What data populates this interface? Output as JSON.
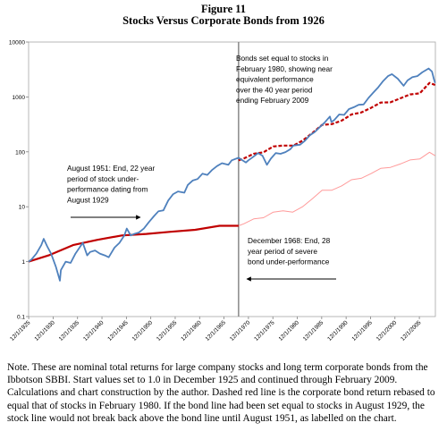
{
  "figure": {
    "number": "Figure 11",
    "title": "Stocks Versus Corporate Bonds from 1926"
  },
  "chart_data": {
    "type": "line",
    "y_scale": "log",
    "ylim": [
      0.1,
      10000
    ],
    "y_ticks": [
      "0.1",
      "1",
      "10",
      "100",
      "1000",
      "10000"
    ],
    "xlim": [
      1925.9,
      2009.2
    ],
    "x_ticks": [
      "12/1/1925",
      "12/1/1930",
      "12/1/1935",
      "12/1/1940",
      "12/1/1945",
      "12/1/1950",
      "12/1/1955",
      "12/1/1960",
      "12/1/1965",
      "12/1/1970",
      "12/1/1975",
      "12/1/1980",
      "12/1/1985",
      "12/1/1990",
      "12/1/1995",
      "12/1/2000",
      "12/1/2005"
    ],
    "vertical_marker_x": 1968.9,
    "colors": {
      "stocks": "#4f81bd",
      "bonds": "#c00000",
      "bonds_after_1968": "#ff9a9a",
      "bonds_rebased": "#c00000",
      "marker": "#7f7f7f"
    },
    "series": [
      {
        "key": "stocks",
        "style": "solid",
        "x": [
          1925.9,
          1926.5,
          1927.5,
          1928.5,
          1929.0,
          1929.7,
          1930.5,
          1931.5,
          1932.3,
          1932.5,
          1933.5,
          1934.5,
          1935.5,
          1936.5,
          1937.0,
          1937.9,
          1938.5,
          1939.5,
          1940.5,
          1941.5,
          1942.3,
          1943.5,
          1944.5,
          1945.5,
          1946.0,
          1946.8,
          1947.5,
          1948.5,
          1949.5,
          1950.5,
          1951.6,
          1952.5,
          1953.5,
          1954.5,
          1955.5,
          1956.5,
          1957.8,
          1958.5,
          1959.5,
          1960.5,
          1961.5,
          1962.5,
          1963.5,
          1964.5,
          1965.5,
          1966.8,
          1967.5,
          1968.9,
          1969.5,
          1970.4,
          1970.9,
          1971.8,
          1972.9,
          1973.8,
          1974.7,
          1975.5,
          1976.5,
          1977.5,
          1978.5,
          1979.5,
          1980.1,
          1981.5,
          1982.5,
          1983.5,
          1984.5,
          1985.5,
          1986.5,
          1987.6,
          1987.9,
          1988.5,
          1989.5,
          1990.5,
          1991.5,
          1992.5,
          1993.5,
          1994.5,
          1995.5,
          1996.5,
          1997.5,
          1998.5,
          1999.5,
          2000.3,
          2001.5,
          2002.7,
          2003.5,
          2004.5,
          2005.5,
          2006.5,
          2007.8,
          2008.5,
          2008.9,
          2009.15
        ],
        "values": [
          1.0,
          1.1,
          1.4,
          2.0,
          2.6,
          1.9,
          1.4,
          0.8,
          0.45,
          0.7,
          1.0,
          0.95,
          1.4,
          1.9,
          2.2,
          1.3,
          1.5,
          1.6,
          1.4,
          1.3,
          1.2,
          1.8,
          2.2,
          3.0,
          4.0,
          3.0,
          3.2,
          3.4,
          4.0,
          5.2,
          6.8,
          8.3,
          8.6,
          13.0,
          17.0,
          19.0,
          18.0,
          25.0,
          30.0,
          32.0,
          40.0,
          38.0,
          47.0,
          55.0,
          62.0,
          58.0,
          70.0,
          78.0,
          72.0,
          64.0,
          70.0,
          80.0,
          95.0,
          85.0,
          58.0,
          75.0,
          95.0,
          92.0,
          99.0,
          112.0,
          130.0,
          135.0,
          160.0,
          200.0,
          230.0,
          280.0,
          340.0,
          440.0,
          350.0,
          380.0,
          480.0,
          470.0,
          600.0,
          650.0,
          720.0,
          730.0,
          960.0,
          1200.0,
          1500.0,
          1950.0,
          2400.0,
          2600.0,
          2150.0,
          1600.0,
          2000.0,
          2300.0,
          2400.0,
          2800.0,
          3300.0,
          2900.0,
          2100.0,
          1800.0
        ]
      },
      {
        "key": "bonds",
        "style": "solid",
        "x": [
          1925.9,
          1930,
          1935,
          1940,
          1945,
          1950,
          1955,
          1960,
          1965,
          1968.9
        ],
        "values": [
          1.0,
          1.3,
          2.0,
          2.5,
          3.0,
          3.2,
          3.5,
          3.8,
          4.5,
          4.5
        ]
      },
      {
        "key": "bonds_after_1968",
        "style": "solid",
        "x": [
          1968.9,
          1970,
          1972,
          1974,
          1976,
          1978,
          1980,
          1982,
          1984,
          1986,
          1988,
          1990,
          1992,
          1994,
          1996,
          1998,
          2000,
          2002,
          2004,
          2006,
          2008,
          2009.15
        ],
        "values": [
          4.5,
          4.9,
          6.0,
          6.3,
          8.0,
          8.4,
          8.0,
          10.0,
          14.0,
          20.0,
          20.0,
          24.0,
          31.0,
          33.0,
          40.0,
          50.0,
          52.0,
          60.0,
          71.0,
          74.0,
          98.0,
          85.0
        ]
      },
      {
        "key": "bonds_rebased",
        "style": "dashed",
        "x": [
          1968.9,
          1970,
          1972,
          1974,
          1976,
          1978,
          1980.1,
          1982,
          1984,
          1986,
          1988,
          1990,
          1992,
          1994,
          1996,
          1998,
          2000,
          2002,
          2004,
          2006,
          2008,
          2009.15
        ],
        "values": [
          70.0,
          76.0,
          92.0,
          98.0,
          125.0,
          130.0,
          130.0,
          160.0,
          220.0,
          310.0,
          320.0,
          370.0,
          480.0,
          520.0,
          630.0,
          790.0,
          800.0,
          940.0,
          1110.0,
          1160.0,
          1800.0,
          1650.0
        ]
      }
    ],
    "annotations": [
      {
        "key": "bonds_set_equal",
        "lines": [
          "Bonds set equal to stocks in",
          "February 1980, showing near",
          "equivalent performance",
          "over the 40 year period",
          "ending February 2009"
        ]
      },
      {
        "key": "aug_1951",
        "lines": [
          "August 1951: End, 22 year",
          "period of stock under-",
          "performance dating from",
          "August 1929"
        ]
      },
      {
        "key": "dec_1968",
        "lines": [
          "December 1968: End, 28",
          "year period of severe",
          "bond under-performance"
        ]
      }
    ]
  },
  "note": {
    "text": "Note.  These are nominal total returns for large company stocks and long term corporate bonds from the Ibbotson SBBI.  Start values set to 1.0 in December 1925 and continued through February 2009. Calculations and chart construction by the author. Dashed red line is the corporate bond return rebased to equal that of stocks in February 1980.  If the bond line had been set equal to stocks in August 1929, the stock line would not break back above the bond line until August 1951, as labelled on the chart."
  }
}
